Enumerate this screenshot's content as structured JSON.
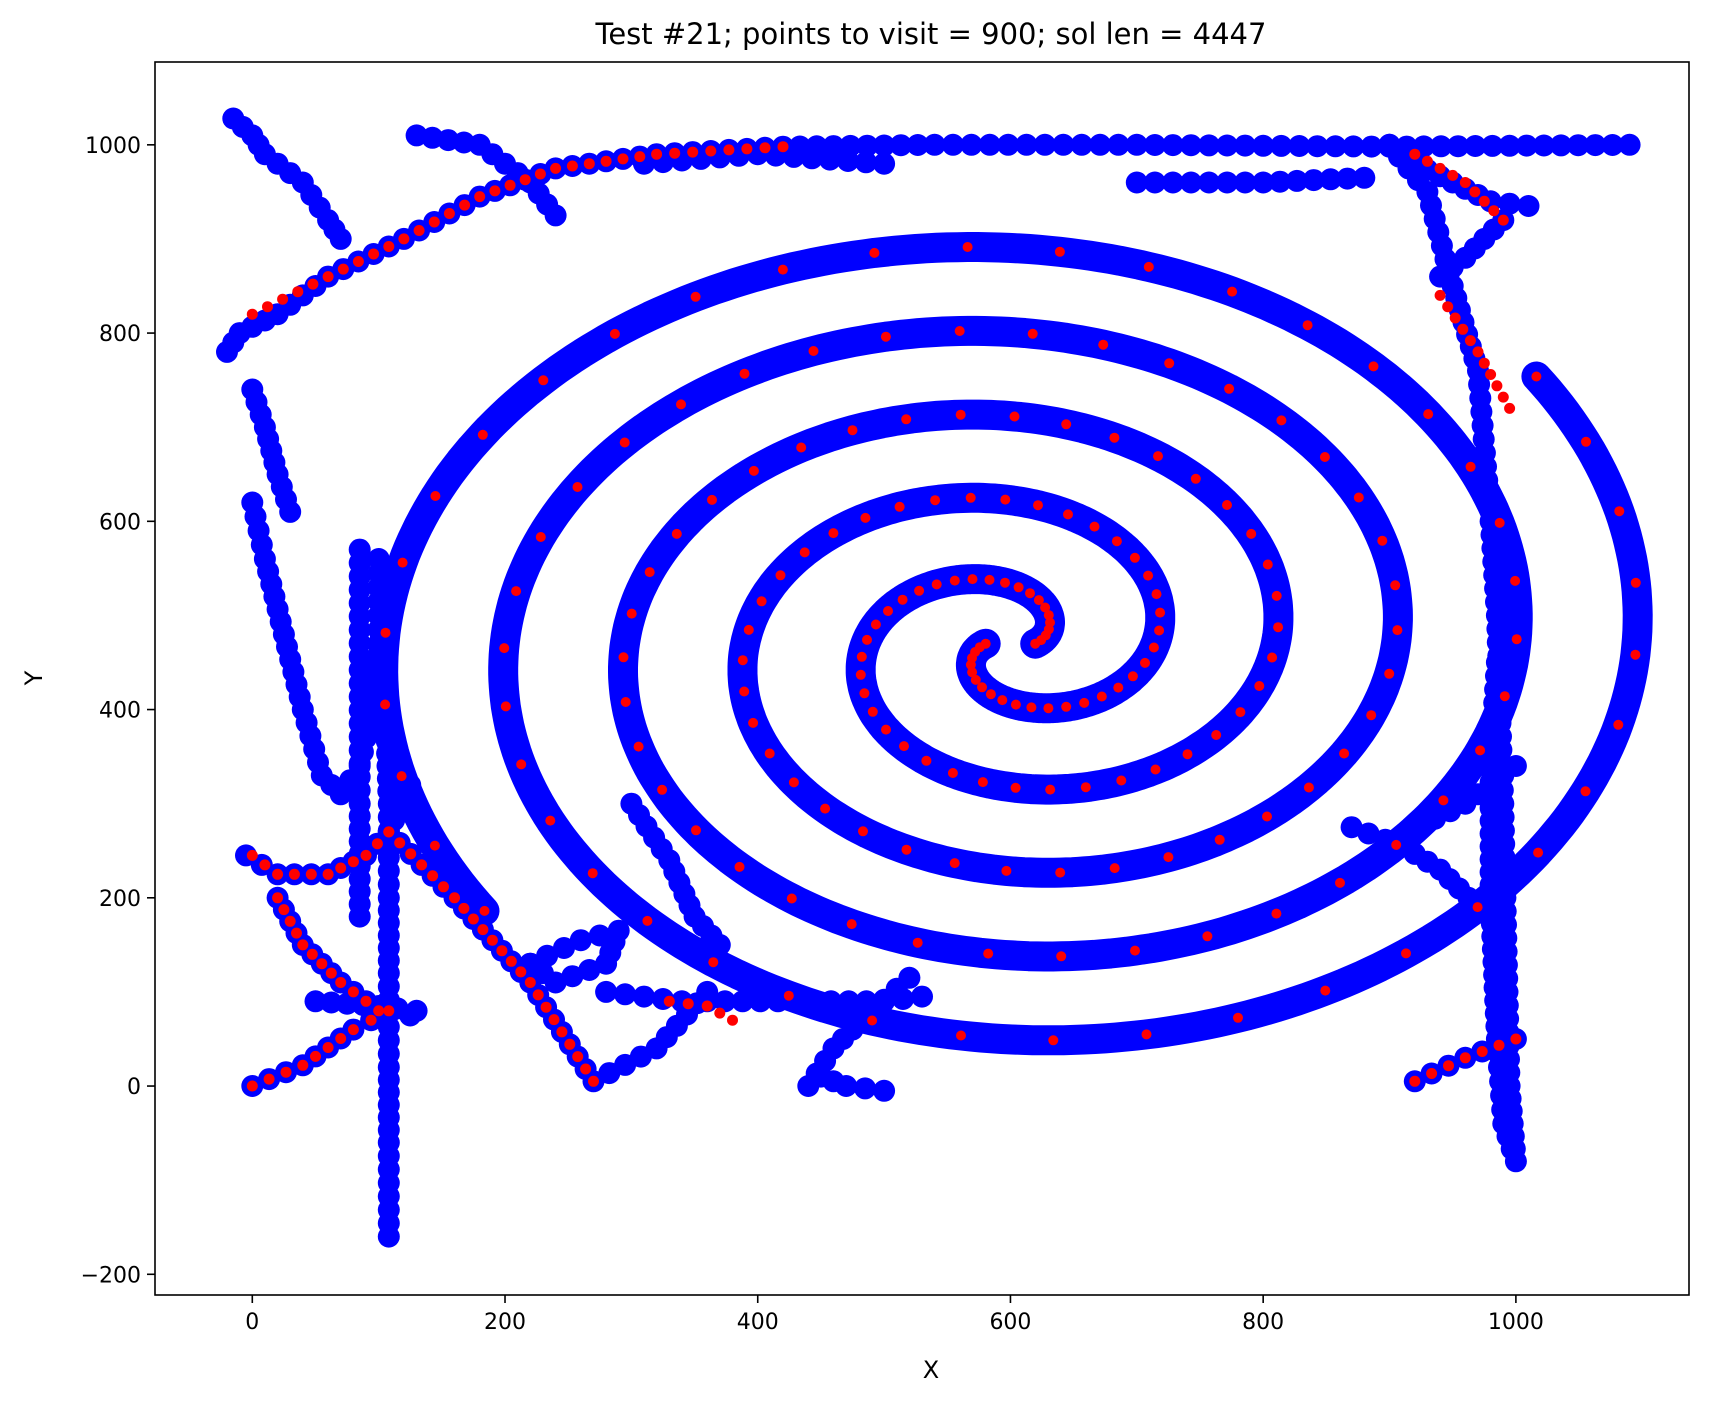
{
  "chart_data": {
    "type": "scatter",
    "title": "Test #21; points to visit = 900; sol len = 4447",
    "xlabel": "X",
    "ylabel": "Y",
    "xlim": [
      -77,
      1137
    ],
    "ylim": [
      -222,
      1088
    ],
    "xticks": [
      0,
      200,
      400,
      600,
      800,
      1000
    ],
    "yticks": [
      -200,
      0,
      200,
      400,
      600,
      800,
      1000
    ],
    "xtick_labels": [
      "0",
      "200",
      "400",
      "600",
      "800",
      "1000"
    ],
    "ytick_labels": [
      "−200",
      "0",
      "200",
      "400",
      "600",
      "800",
      "1000"
    ],
    "grid": false,
    "legend": "none",
    "colors": {
      "route": "#0000ff",
      "points": "#ff0000"
    },
    "spiral": {
      "center": [
        600,
        470
      ],
      "arms": 2,
      "radius_start": 20,
      "radius_end": 525,
      "turns": 2.6
    },
    "series": [
      {
        "role": "route",
        "color": "#0000ff",
        "segments": [
          [
            [
              0,
              0
            ],
            [
              40,
              22
            ],
            [
              80,
              60
            ],
            [
              108,
              80
            ],
            [
              125,
              75
            ]
          ],
          [
            [
              108,
              -160
            ],
            [
              108,
              -60
            ],
            [
              108,
              20
            ],
            [
              108,
              120
            ],
            [
              108,
              200
            ],
            [
              108,
              300
            ],
            [
              106,
              380
            ]
          ],
          [
            [
              -5,
              245
            ],
            [
              20,
              225
            ],
            [
              60,
              225
            ],
            [
              90,
              245
            ],
            [
              108,
              270
            ],
            [
              125,
              320
            ]
          ],
          [
            [
              -20,
              780
            ],
            [
              -10,
              800
            ],
            [
              20,
              820
            ],
            [
              60,
              860
            ],
            [
              120,
              900
            ],
            [
              180,
              945
            ],
            [
              240,
              975
            ],
            [
              320,
              990
            ],
            [
              420,
              998
            ],
            [
              540,
              1000
            ],
            [
              700,
              1000
            ],
            [
              900,
              998
            ],
            [
              1090,
              1000
            ]
          ],
          [
            [
              -15,
              1028
            ],
            [
              0,
              1010
            ],
            [
              10,
              990
            ],
            [
              40,
              960
            ],
            [
              60,
              920
            ],
            [
              70,
              900
            ]
          ],
          [
            [
              130,
              1010
            ],
            [
              180,
              1000
            ],
            [
              220,
              960
            ],
            [
              240,
              925
            ]
          ],
          [
            [
              0,
              740
            ],
            [
              10,
              700
            ],
            [
              20,
              650
            ],
            [
              30,
              610
            ]
          ],
          [
            [
              0,
              620
            ],
            [
              10,
              560
            ],
            [
              25,
              480
            ],
            [
              40,
              400
            ],
            [
              55,
              330
            ],
            [
              70,
              310
            ],
            [
              85,
              340
            ],
            [
              95,
              400
            ],
            [
              100,
              470
            ],
            [
              100,
              560
            ]
          ],
          [
            [
              85,
              570
            ],
            [
              85,
              300
            ],
            [
              85,
              180
            ]
          ],
          [
            [
              20,
              200
            ],
            [
              40,
              150
            ],
            [
              70,
              110
            ],
            [
              100,
              80
            ]
          ],
          [
            [
              50,
              90
            ],
            [
              100,
              85
            ],
            [
              130,
              80
            ]
          ],
          [
            [
              108,
              270
            ],
            [
              160,
              200
            ],
            [
              220,
              110
            ],
            [
              270,
              5
            ],
            [
              320,
              40
            ],
            [
              360,
              100
            ]
          ],
          [
            [
              300,
              300
            ],
            [
              330,
              240
            ],
            [
              350,
              180
            ],
            [
              370,
              150
            ]
          ],
          [
            [
              220,
              130
            ],
            [
              260,
              155
            ],
            [
              290,
              165
            ],
            [
              280,
              130
            ],
            [
              240,
              110
            ],
            [
              220,
              130
            ]
          ],
          [
            [
              280,
              100
            ],
            [
              340,
              90
            ],
            [
              360,
              90
            ],
            [
              500,
              90
            ],
            [
              530,
              95
            ]
          ],
          [
            [
              440,
              0
            ],
            [
              460,
              40
            ],
            [
              490,
              80
            ],
            [
              520,
              115
            ]
          ],
          [
            [
              500,
              -5
            ],
            [
              470,
              0
            ],
            [
              450,
              10
            ]
          ],
          [
            [
              900,
              1000
            ],
            [
              920,
              980
            ],
            [
              950,
              960
            ],
            [
              980,
              940
            ],
            [
              1010,
              935
            ]
          ],
          [
            [
              900,
              1000
            ],
            [
              930,
              950
            ],
            [
              950,
              850
            ],
            [
              970,
              760
            ],
            [
              980,
              600
            ],
            [
              985,
              500
            ],
            [
              990,
              300
            ],
            [
              995,
              0
            ],
            [
              1000,
              -80
            ],
            [
              990,
              -40
            ],
            [
              985,
              50
            ],
            [
              980,
              200
            ],
            [
              980,
              350
            ],
            [
              985,
              450
            ]
          ],
          [
            [
              920,
              5
            ],
            [
              960,
              30
            ],
            [
              1000,
              50
            ]
          ],
          [
            [
              900,
              260
            ],
            [
              960,
              300
            ],
            [
              1000,
              340
            ]
          ],
          [
            [
              870,
              275
            ],
            [
              910,
              255
            ],
            [
              940,
              230
            ],
            [
              970,
              190
            ]
          ],
          [
            [
              700,
              960
            ],
            [
              800,
              960
            ],
            [
              880,
              965
            ]
          ],
          [
            [
              310,
              980
            ],
            [
              400,
              990
            ],
            [
              500,
              980
            ]
          ],
          [
            [
              940,
              860
            ],
            [
              960,
              880
            ],
            [
              990,
              920
            ]
          ]
        ]
      },
      {
        "role": "visited",
        "color": "#ff0000",
        "segments": [
          [
            [
              0,
              0
            ],
            [
              40,
              22
            ],
            [
              80,
              60
            ],
            [
              108,
              80
            ]
          ],
          [
            [
              0,
              245
            ],
            [
              20,
              225
            ],
            [
              60,
              225
            ],
            [
              90,
              245
            ],
            [
              108,
              270
            ]
          ],
          [
            [
              108,
              270
            ],
            [
              160,
              200
            ],
            [
              220,
              110
            ],
            [
              270,
              5
            ]
          ],
          [
            [
              20,
              200
            ],
            [
              40,
              150
            ],
            [
              70,
              110
            ],
            [
              100,
              80
            ]
          ],
          [
            [
              0,
              820
            ],
            [
              60,
              860
            ],
            [
              120,
              900
            ],
            [
              180,
              945
            ],
            [
              240,
              975
            ],
            [
              320,
              990
            ],
            [
              420,
              998
            ]
          ],
          [
            [
              920,
              5
            ],
            [
              960,
              30
            ],
            [
              1000,
              50
            ]
          ],
          [
            [
              330,
              90
            ],
            [
              360,
              85
            ],
            [
              380,
              70
            ]
          ],
          [
            [
              920,
              990
            ],
            [
              960,
              960
            ],
            [
              990,
              920
            ]
          ],
          [
            [
              940,
              840
            ],
            [
              970,
              780
            ],
            [
              995,
              720
            ]
          ]
        ]
      }
    ]
  }
}
